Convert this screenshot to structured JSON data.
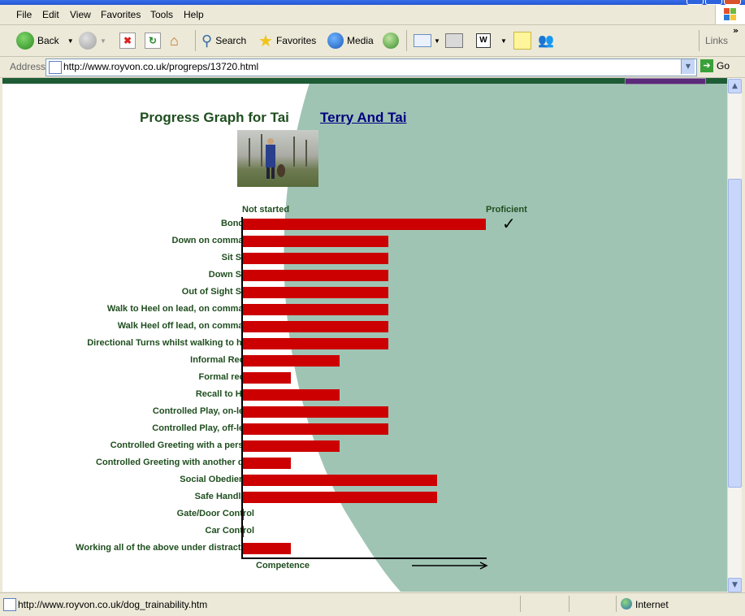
{
  "menu": {
    "items": [
      "File",
      "Edit",
      "View",
      "Favorites",
      "Tools",
      "Help"
    ],
    "accesskeys": [
      "F",
      "E",
      "V",
      "a",
      "T",
      "H"
    ]
  },
  "toolbar": {
    "back_label": "Back",
    "search_label": "Search",
    "favorites_label": "Favorites",
    "media_label": "Media",
    "links_label": "Links"
  },
  "address": {
    "label": "Address",
    "url": "http://www.royvon.co.uk/progreps/13720.html",
    "go_label": "Go"
  },
  "page": {
    "title": "Progress Graph for Tai",
    "link_text": "Terry And Tai",
    "scale_start": "Not started",
    "scale_end": "Proficient",
    "axis_label": "Competence",
    "check_mark": "✓"
  },
  "chart_data": {
    "type": "bar",
    "orientation": "horizontal",
    "categories": [
      "Bonded",
      "Down on command",
      "Sit Stay",
      "Down Stay",
      "Out of Sight Stay",
      "Walk to Heel on lead, on command",
      "Walk Heel off lead, on command",
      "Directional Turns whilst walking to heel",
      "Informal Recall",
      "Formal recall",
      "Recall to Heel",
      "Controlled Play, on-lead",
      "Controlled Play, off-lead",
      "Controlled Greeting with a person",
      "Controlled Greeting with another dog",
      "Social Obedience",
      "Safe Handling",
      "Gate/Door Control",
      "Car Control",
      "Working all of the above under distraction"
    ],
    "values": [
      5,
      3,
      3,
      3,
      3,
      3,
      3,
      3,
      2,
      1,
      2,
      3,
      3,
      2,
      1,
      4,
      4,
      0,
      0,
      1
    ],
    "xlim": [
      0,
      5
    ],
    "xlabel": "Competence",
    "bar_color": "#cc0000"
  },
  "status": {
    "url": "http://www.royvon.co.uk/dog_trainability.htm",
    "zone": "Internet"
  },
  "colors": {
    "background_shape": "#9fc4b4",
    "label_text": "#1f4e1f",
    "link": "#000080"
  }
}
